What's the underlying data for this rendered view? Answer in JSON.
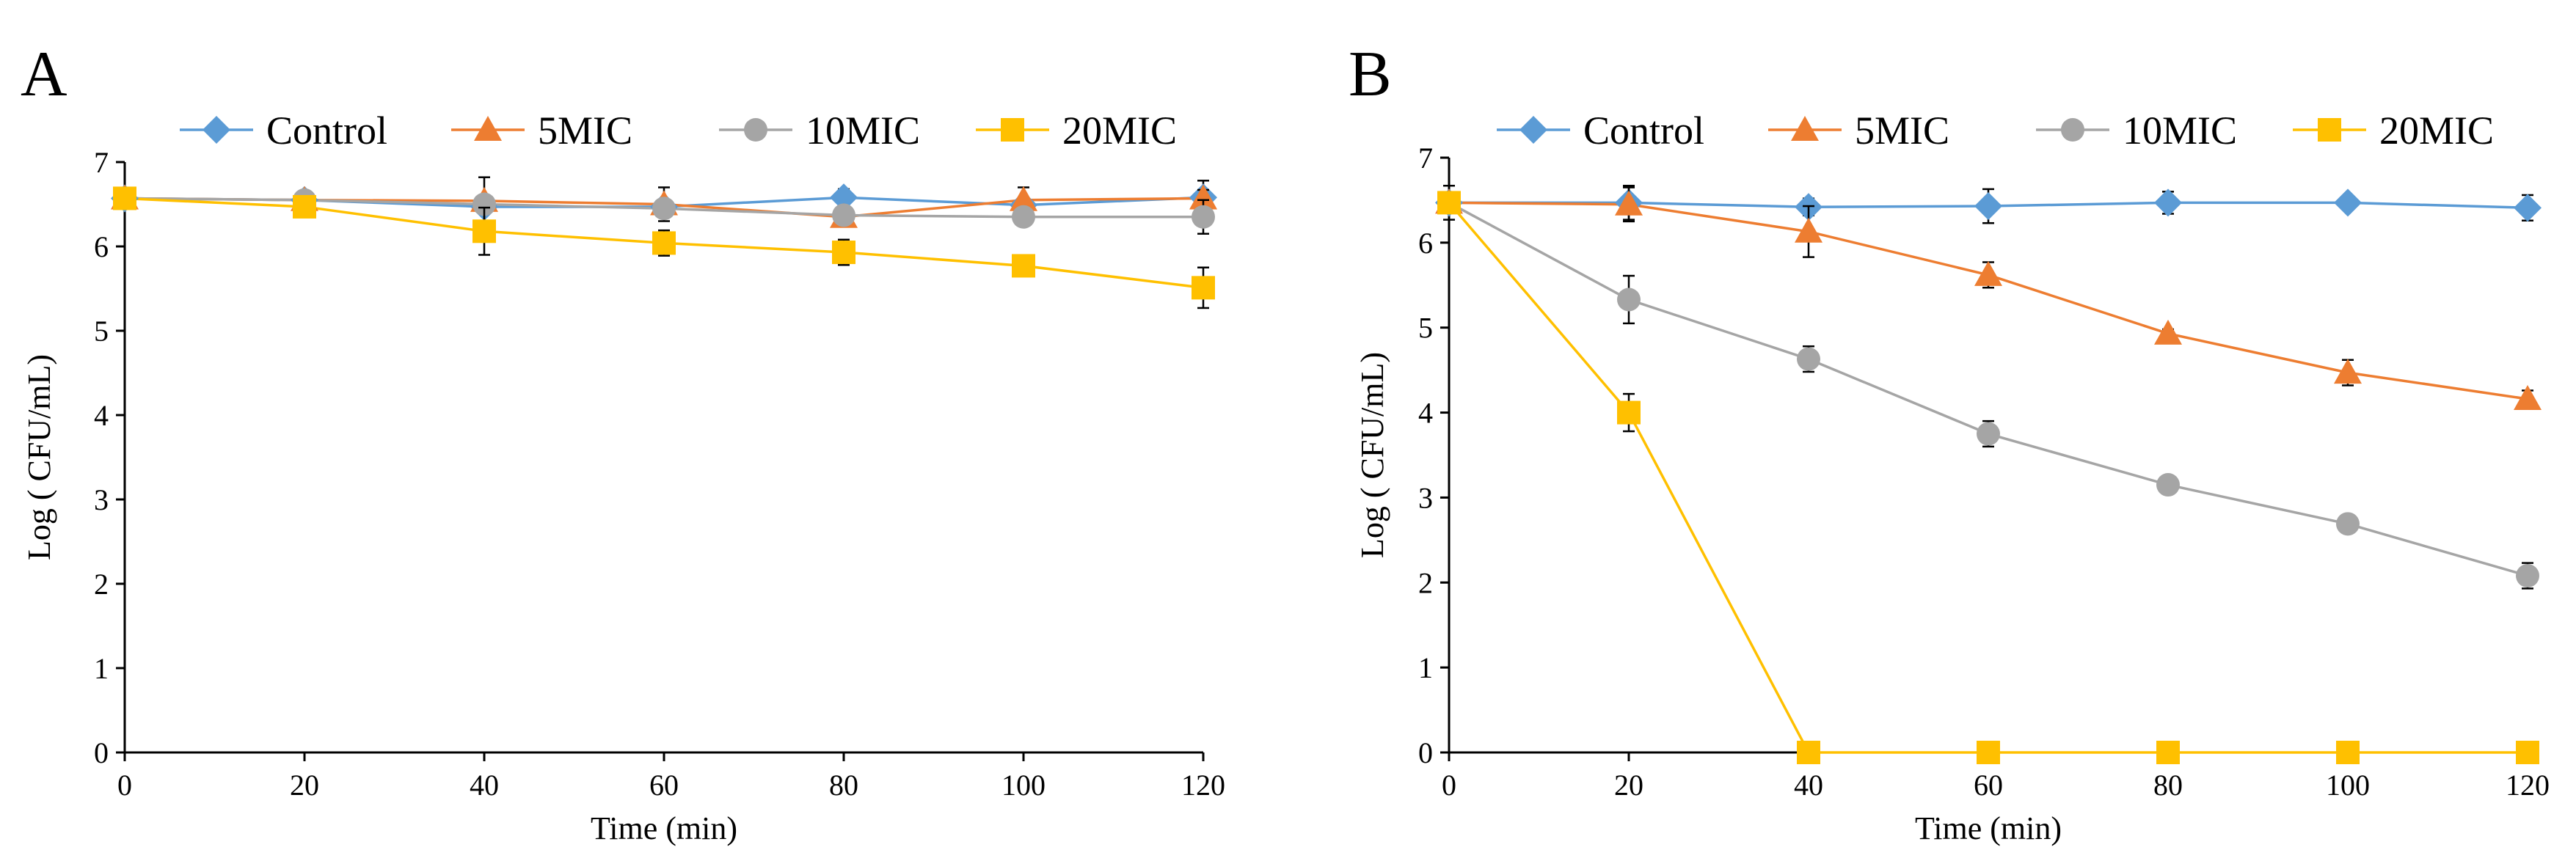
{
  "chart_data": [
    {
      "panel": "A",
      "type": "line",
      "xlabel": "Time (min)",
      "ylabel": "Log ( CFU/mL)",
      "xlim": [
        0,
        120
      ],
      "ylim": [
        0,
        7
      ],
      "xticks": [
        0,
        20,
        40,
        60,
        80,
        100,
        120
      ],
      "yticks": [
        0,
        1,
        2,
        3,
        4,
        5,
        6,
        7
      ],
      "x": [
        0,
        20,
        40,
        60,
        80,
        100,
        120
      ],
      "legend_position": "top",
      "series": [
        {
          "name": "Control",
          "marker": "diamond",
          "color": "#5B9BD5",
          "values": [
            6.57,
            6.55,
            6.47,
            6.47,
            6.58,
            6.49,
            6.58
          ],
          "errors": [
            0.05,
            0.08,
            0.05,
            0.05,
            0.1,
            0.05,
            0.2
          ]
        },
        {
          "name": "5MIC",
          "marker": "triangle",
          "color": "#ED7D31",
          "values": [
            6.57,
            6.55,
            6.54,
            6.5,
            6.35,
            6.55,
            6.57
          ],
          "errors": [
            0.05,
            0.08,
            0.28,
            0.2,
            0.06,
            0.15,
            0.1
          ]
        },
        {
          "name": "10MIC",
          "marker": "circle",
          "color": "#A5A5A5",
          "values": [
            6.57,
            6.55,
            6.5,
            6.45,
            6.37,
            6.35,
            6.35
          ],
          "errors": [
            0.05,
            0.05,
            0.1,
            0.1,
            0.05,
            0.1,
            0.2
          ]
        },
        {
          "name": "20MIC",
          "marker": "square",
          "color": "#FFC000",
          "values": [
            6.57,
            6.47,
            6.18,
            6.04,
            5.93,
            5.77,
            5.51
          ],
          "errors": [
            0.05,
            0.05,
            0.28,
            0.15,
            0.15,
            0.05,
            0.24
          ]
        }
      ]
    },
    {
      "panel": "B",
      "type": "line",
      "xlabel": "Time (min)",
      "ylabel": "Log ( CFU/mL)",
      "xlim": [
        0,
        120
      ],
      "ylim": [
        0,
        7
      ],
      "xticks": [
        0,
        20,
        40,
        60,
        80,
        100,
        120
      ],
      "yticks": [
        0,
        1,
        2,
        3,
        4,
        5,
        6,
        7
      ],
      "x": [
        0,
        20,
        40,
        60,
        80,
        100,
        120
      ],
      "legend_position": "top",
      "series": [
        {
          "name": "Control",
          "marker": "diamond",
          "color": "#5B9BD5",
          "values": [
            6.47,
            6.47,
            6.42,
            6.43,
            6.47,
            6.47,
            6.41
          ],
          "errors": [
            0.2,
            0.2,
            0.1,
            0.2,
            0.13,
            0.05,
            0.15
          ]
        },
        {
          "name": "5MIC",
          "marker": "triangle",
          "color": "#ED7D31",
          "values": [
            6.47,
            6.45,
            6.13,
            5.62,
            4.93,
            4.47,
            4.16
          ],
          "errors": [
            0.05,
            0.2,
            0.3,
            0.15,
            0.05,
            0.15,
            0.1
          ]
        },
        {
          "name": "10MIC",
          "marker": "circle",
          "color": "#A5A5A5",
          "values": [
            6.47,
            5.33,
            4.63,
            3.75,
            3.15,
            2.69,
            2.08
          ],
          "errors": [
            0.05,
            0.28,
            0.15,
            0.15,
            0.05,
            0.05,
            0.15
          ]
        },
        {
          "name": "20MIC",
          "marker": "square",
          "color": "#FFC000",
          "values": [
            6.47,
            4.0,
            0,
            0,
            0,
            0,
            0
          ],
          "errors": [
            0.05,
            0.22,
            0,
            0,
            0,
            0,
            0
          ]
        }
      ]
    }
  ]
}
